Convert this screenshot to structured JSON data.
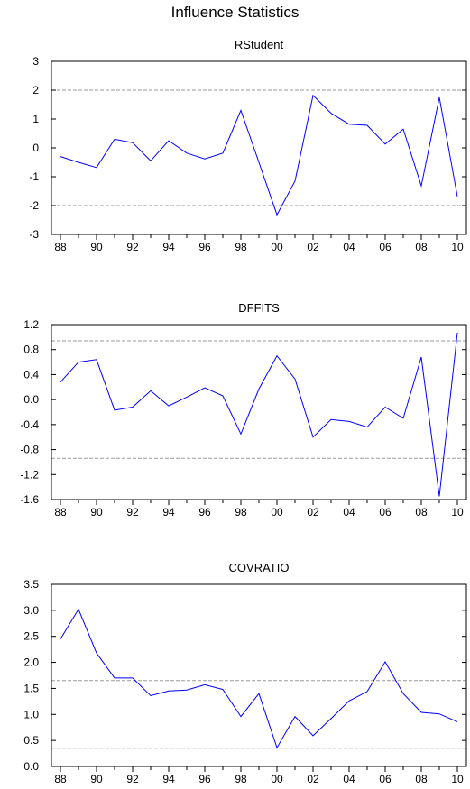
{
  "figure": {
    "title": "Influence Statistics"
  },
  "colors": {
    "series": "#0000ff",
    "reference_line": "#9a9a9a",
    "axis": "#000000"
  },
  "chart_data": [
    {
      "type": "line",
      "title": "RStudent",
      "x": [
        1988,
        1989,
        1990,
        1991,
        1992,
        1993,
        1994,
        1995,
        1996,
        1997,
        1998,
        1999,
        2000,
        2001,
        2002,
        2003,
        2004,
        2005,
        2006,
        2007,
        2008,
        2009,
        2010
      ],
      "series": [
        {
          "values": [
            -0.3,
            -0.5,
            -0.68,
            0.3,
            0.18,
            -0.45,
            0.25,
            -0.18,
            -0.38,
            -0.18,
            1.3,
            -0.5,
            -2.32,
            -1.15,
            1.82,
            1.2,
            0.82,
            0.78,
            0.13,
            0.65,
            -1.32,
            1.75,
            -1.68
          ]
        }
      ],
      "reference_lines": [
        2,
        -2
      ],
      "ylim": [
        -3,
        3
      ],
      "yticks": [
        3,
        2,
        1,
        0,
        -1,
        -2,
        -3
      ],
      "ytick_labels": [
        "3",
        "2",
        "1",
        "0",
        "-1",
        "-2",
        "-3"
      ],
      "xticks": [
        1988,
        1990,
        1992,
        1994,
        1996,
        1998,
        2000,
        2002,
        2004,
        2006,
        2008,
        2010
      ],
      "xtick_labels": [
        "88",
        "90",
        "92",
        "94",
        "96",
        "98",
        "00",
        "02",
        "04",
        "06",
        "08",
        "10"
      ],
      "xlim": [
        1987.5,
        2010.5
      ],
      "grid": false
    },
    {
      "type": "line",
      "title": "DFFITS",
      "x": [
        1988,
        1989,
        1990,
        1991,
        1992,
        1993,
        1994,
        1995,
        1996,
        1997,
        1998,
        1999,
        2000,
        2001,
        2002,
        2003,
        2004,
        2005,
        2006,
        2007,
        2008,
        2009,
        2010
      ],
      "series": [
        {
          "values": [
            0.28,
            0.6,
            0.64,
            -0.17,
            -0.12,
            0.14,
            -0.1,
            0.04,
            0.19,
            0.06,
            -0.55,
            0.17,
            0.7,
            0.33,
            -0.6,
            -0.32,
            -0.35,
            -0.44,
            -0.12,
            -0.3,
            0.68,
            -1.55,
            1.07
          ]
        }
      ],
      "reference_lines": [
        0.94,
        -0.94
      ],
      "ylim": [
        -1.6,
        1.2
      ],
      "yticks": [
        1.2,
        0.8,
        0.4,
        0.0,
        -0.4,
        -0.8,
        -1.2,
        -1.6
      ],
      "ytick_labels": [
        "1.2",
        "0.8",
        "0.4",
        "0.0",
        "-0.4",
        "-0.8",
        "-1.2",
        "-1.6"
      ],
      "xticks": [
        1988,
        1990,
        1992,
        1994,
        1996,
        1998,
        2000,
        2002,
        2004,
        2006,
        2008,
        2010
      ],
      "xtick_labels": [
        "88",
        "90",
        "92",
        "94",
        "96",
        "98",
        "00",
        "02",
        "04",
        "06",
        "08",
        "10"
      ],
      "xlim": [
        1987.5,
        2010.5
      ],
      "grid": false
    },
    {
      "type": "line",
      "title": "COVRATIO",
      "x": [
        1988,
        1989,
        1990,
        1991,
        1992,
        1993,
        1994,
        1995,
        1996,
        1997,
        1998,
        1999,
        2000,
        2001,
        2002,
        2003,
        2004,
        2005,
        2006,
        2007,
        2008,
        2009,
        2010
      ],
      "series": [
        {
          "values": [
            2.45,
            3.02,
            2.18,
            1.7,
            1.7,
            1.36,
            1.45,
            1.47,
            1.57,
            1.48,
            0.96,
            1.4,
            0.36,
            0.96,
            0.59,
            0.92,
            1.26,
            1.44,
            2.01,
            1.4,
            1.04,
            1.01,
            0.86
          ]
        }
      ],
      "reference_lines": [
        1.65,
        0.35
      ],
      "ylim": [
        0.0,
        3.5
      ],
      "yticks": [
        3.5,
        3.0,
        2.5,
        2.0,
        1.5,
        1.0,
        0.5,
        0.0
      ],
      "ytick_labels": [
        "3.5",
        "3.0",
        "2.5",
        "2.0",
        "1.5",
        "1.0",
        "0.5",
        "0.0"
      ],
      "xticks": [
        1988,
        1990,
        1992,
        1994,
        1996,
        1998,
        2000,
        2002,
        2004,
        2006,
        2008,
        2010
      ],
      "xtick_labels": [
        "88",
        "90",
        "92",
        "94",
        "96",
        "98",
        "00",
        "02",
        "04",
        "06",
        "08",
        "10"
      ],
      "xlim": [
        1987.5,
        2010.5
      ],
      "grid": false
    }
  ]
}
